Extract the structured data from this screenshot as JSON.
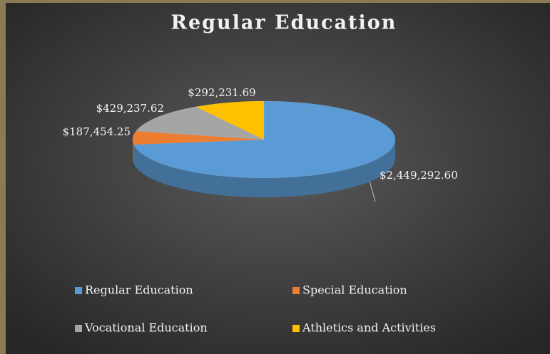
{
  "chart_data": {
    "type": "pie",
    "title": "Regular Education",
    "categories": [
      "Regular Education",
      "Special Education",
      "Vocational Education",
      "Athletics and Activities"
    ],
    "values": [
      2449292.6,
      187454.25,
      429237.62,
      292231.69
    ],
    "value_labels": [
      "$2,449,292.60",
      "$187,454.25",
      "$429,237.62",
      "$292,231.69"
    ],
    "colors": [
      "#5b9bd5",
      "#ed7d31",
      "#a5a5a5",
      "#ffc000"
    ],
    "legend": "bottom"
  }
}
